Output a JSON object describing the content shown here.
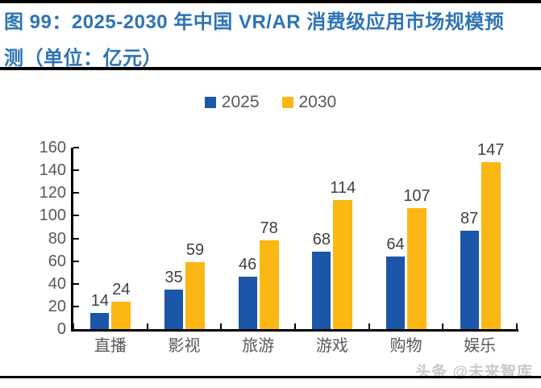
{
  "title": {
    "line1": "图 99：2025-2030 年中国 VR/AR 消费级应用市场规模预",
    "line2": "测（单位：亿元）"
  },
  "colors": {
    "title_blue": "#2E74B5",
    "bar_blue": "#1C56A8",
    "bar_yellow": "#FBB714",
    "axis": "#000000",
    "tick_label_gray": "#595959",
    "value_label_gray": "#404040",
    "watermark_gray": "#C9C9C9"
  },
  "legend": {
    "items": [
      {
        "label": "2025",
        "color": "#1C56A8"
      },
      {
        "label": "2030",
        "color": "#FBB714"
      }
    ]
  },
  "watermark": "头条 @未来智库",
  "chart_data": {
    "type": "bar",
    "title": "图 99：2025-2030 年中国 VR/AR 消费级应用市场规模预测（单位：亿元）",
    "unit": "亿元",
    "categories": [
      "直播",
      "影视",
      "旅游",
      "游戏",
      "购物",
      "娱乐"
    ],
    "series": [
      {
        "name": "2025",
        "color": "#1C56A8",
        "values": [
          14,
          35,
          46,
          68,
          64,
          87
        ]
      },
      {
        "name": "2030",
        "color": "#FBB714",
        "values": [
          24,
          59,
          78,
          114,
          107,
          147
        ]
      }
    ],
    "ylim": [
      0,
      160
    ],
    "yticks": [
      0,
      20,
      40,
      60,
      80,
      100,
      120,
      140,
      160
    ],
    "xlabel": "",
    "ylabel": "",
    "grid": false,
    "data_labels": true,
    "legend_position": "top"
  }
}
